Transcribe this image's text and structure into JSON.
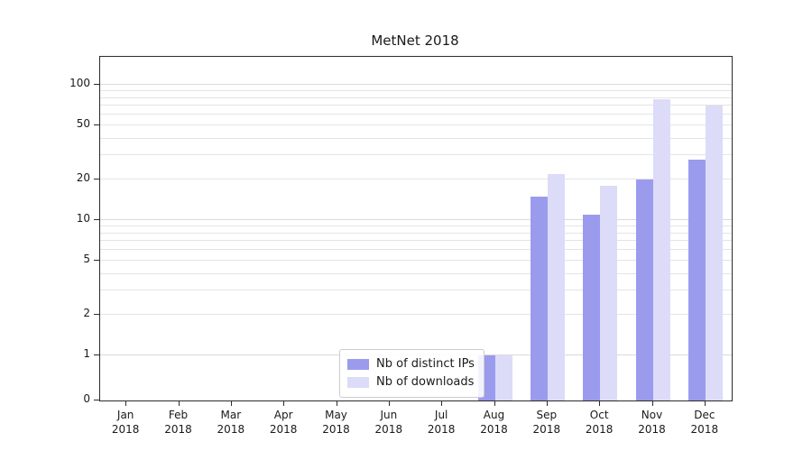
{
  "chart_data": {
    "type": "bar",
    "title": "MetNet 2018",
    "categories": [
      "Jan",
      "Feb",
      "Mar",
      "Apr",
      "May",
      "Jun",
      "Jul",
      "Aug",
      "Sep",
      "Oct",
      "Nov",
      "Dec"
    ],
    "year_label": "2018",
    "series": [
      {
        "name": "Nb of distinct IPs",
        "color": "#9b9bee",
        "values": [
          0,
          0,
          0,
          0,
          0,
          0,
          0,
          1,
          15,
          11,
          20,
          28
        ]
      },
      {
        "name": "Nb of downloads",
        "color": "#dcdcf8",
        "values": [
          0,
          0,
          0,
          0,
          0,
          0,
          0,
          1,
          22,
          18,
          78,
          70
        ]
      }
    ],
    "yscale": "symlog",
    "yticks": [
      0,
      1,
      2,
      5,
      10,
      20,
      50,
      100
    ],
    "ylim": [
      0,
      160
    ],
    "grid": true,
    "legend_position": "lower center"
  }
}
